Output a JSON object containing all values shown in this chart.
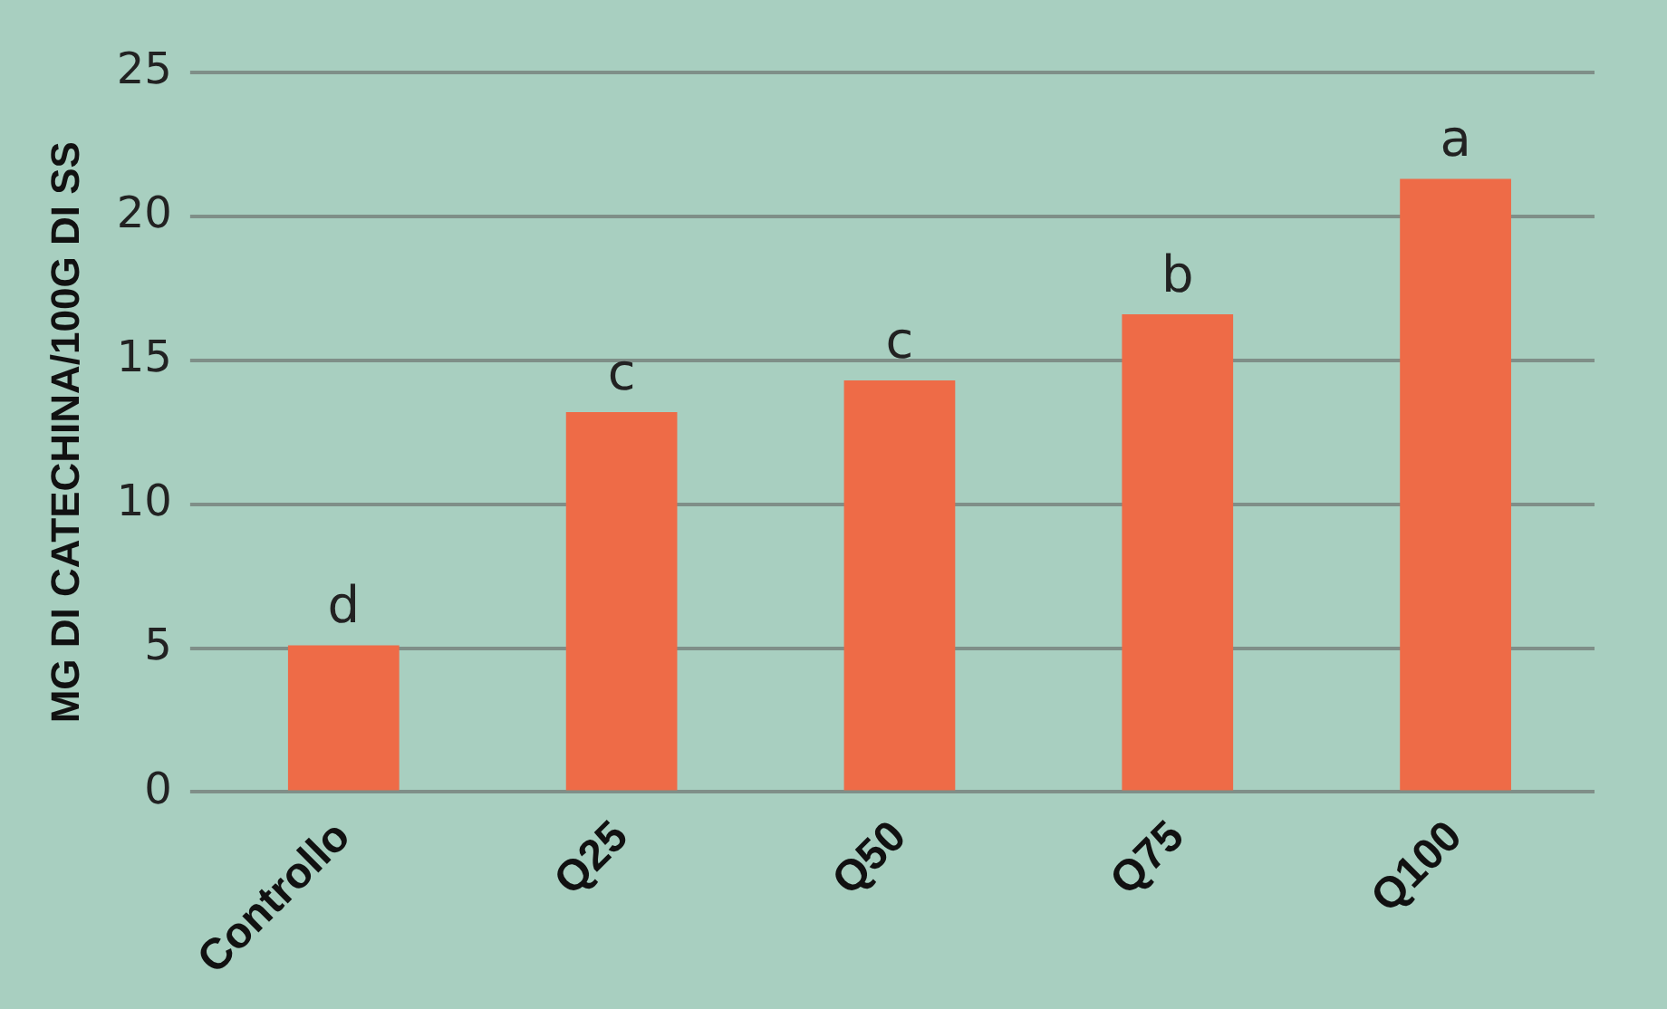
{
  "chart_data": {
    "type": "bar",
    "ylabel": "MG DI CATECHINA/100G DI SS",
    "categories": [
      "Controllo",
      "Q25",
      "Q50",
      "Q75",
      "Q100"
    ],
    "values": [
      5.1,
      13.2,
      14.3,
      16.6,
      21.3
    ],
    "color": "#ee6b47",
    "ylim": [
      0,
      25
    ],
    "yticks": [
      0,
      5,
      10,
      15,
      20,
      25
    ],
    "grid": "y",
    "legend": false,
    "annotations": [
      {
        "text": "d",
        "x": "Controllo",
        "y": 5.1
      },
      {
        "text": "c",
        "x": "Q25",
        "y": 13.2
      },
      {
        "text": "c",
        "x": "Q50",
        "y": 14.3
      },
      {
        "text": "b",
        "x": "Q75",
        "y": 16.6
      },
      {
        "text": "a",
        "x": "Q100",
        "y": 21.3
      }
    ]
  }
}
